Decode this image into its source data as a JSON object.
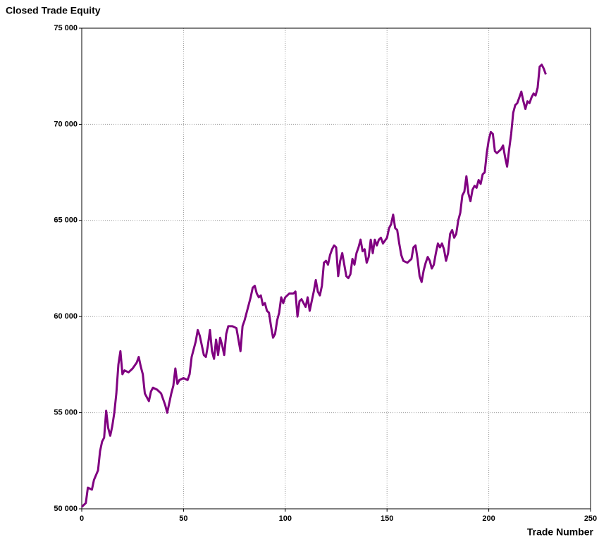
{
  "chart_data": {
    "type": "line",
    "title": "Closed Trade Equity",
    "xlabel": "Trade Number",
    "x": [
      0,
      2,
      3,
      5,
      6,
      8,
      9,
      10,
      11,
      12,
      13,
      14,
      15,
      16,
      17,
      18,
      19,
      20,
      21,
      23,
      25,
      27,
      28,
      29,
      30,
      31,
      32,
      33,
      34,
      35,
      37,
      39,
      41,
      42,
      43,
      44,
      45,
      46,
      47,
      48,
      50,
      52,
      53,
      54,
      56,
      57,
      58,
      60,
      61,
      62,
      63,
      64,
      65,
      66,
      67,
      68,
      69,
      70,
      71,
      72,
      74,
      76,
      77,
      78,
      79,
      80,
      81,
      82,
      83,
      84,
      85,
      86,
      87,
      88,
      89,
      90,
      91,
      92,
      93,
      94,
      95,
      96,
      97,
      98,
      99,
      100,
      102,
      104,
      105,
      106,
      107,
      108,
      110,
      111,
      112,
      113,
      114,
      115,
      116,
      117,
      118,
      119,
      120,
      121,
      122,
      123,
      124,
      125,
      126,
      127,
      128,
      129,
      130,
      131,
      132,
      133,
      134,
      135,
      136,
      137,
      138,
      139,
      140,
      141,
      142,
      143,
      144,
      145,
      146,
      147,
      148,
      150,
      151,
      152,
      153,
      154,
      155,
      156,
      157,
      158,
      160,
      162,
      163,
      164,
      165,
      166,
      167,
      168,
      169,
      170,
      171,
      172,
      173,
      174,
      175,
      176,
      177,
      178,
      179,
      180,
      181,
      182,
      183,
      184,
      185,
      186,
      187,
      188,
      189,
      190,
      191,
      192,
      193,
      194,
      195,
      196,
      197,
      198,
      199,
      200,
      201,
      202,
      203,
      204,
      205,
      206,
      207,
      208,
      209,
      210,
      211,
      212,
      213,
      214,
      215,
      216,
      217,
      218,
      219,
      220,
      221,
      222,
      223,
      224,
      225,
      226,
      227,
      228
    ],
    "series": [
      {
        "name": "Closed Trade Equity",
        "color": "#800080",
        "values": [
          50100,
          50300,
          51100,
          51000,
          51500,
          52000,
          53000,
          53500,
          53700,
          55100,
          54200,
          53800,
          54300,
          55000,
          56000,
          57500,
          58200,
          57000,
          57200,
          57100,
          57300,
          57600,
          57900,
          57400,
          57000,
          56000,
          55800,
          55600,
          56100,
          56300,
          56200,
          56000,
          55400,
          55000,
          55500,
          56000,
          56400,
          57300,
          56500,
          56700,
          56800,
          56700,
          57000,
          57900,
          58700,
          59300,
          59000,
          58000,
          57900,
          58500,
          59300,
          58200,
          57800,
          58800,
          58000,
          58900,
          58500,
          58000,
          59100,
          59500,
          59500,
          59400,
          58800,
          58200,
          59500,
          59800,
          60200,
          60600,
          61000,
          61500,
          61600,
          61200,
          61000,
          61100,
          60600,
          60700,
          60300,
          60200,
          59500,
          58900,
          59100,
          59800,
          60200,
          61000,
          60700,
          61000,
          61200,
          61200,
          61300,
          60000,
          60800,
          60900,
          60500,
          61000,
          60300,
          60800,
          61300,
          61900,
          61300,
          61100,
          61600,
          62800,
          62900,
          62700,
          63200,
          63500,
          63700,
          63600,
          62100,
          62900,
          63300,
          62700,
          62100,
          62000,
          62200,
          63000,
          62700,
          63300,
          63600,
          64000,
          63400,
          63500,
          62800,
          63100,
          64000,
          63300,
          64000,
          63700,
          64000,
          64100,
          63800,
          64100,
          64600,
          64800,
          65300,
          64600,
          64500,
          63800,
          63200,
          62900,
          62800,
          63000,
          63600,
          63700,
          63000,
          62100,
          61800,
          62400,
          62800,
          63100,
          62900,
          62500,
          62700,
          63300,
          63800,
          63600,
          63800,
          63500,
          62900,
          63300,
          64300,
          64500,
          64100,
          64300,
          65000,
          65400,
          66300,
          66500,
          67300,
          66400,
          66000,
          66600,
          66800,
          66700,
          67100,
          66900,
          67400,
          67500,
          68500,
          69200,
          69600,
          69500,
          68600,
          68500,
          68600,
          68700,
          68900,
          68300,
          67800,
          68700,
          69500,
          70600,
          71000,
          71100,
          71400,
          71700,
          71200,
          70800,
          71200,
          71100,
          71400,
          71600,
          71500,
          71900,
          73000,
          73100,
          72900,
          72600
        ]
      }
    ],
    "xlim": [
      0,
      250
    ],
    "xticks": [
      0,
      50,
      100,
      150,
      200,
      250
    ],
    "ylim": [
      50000,
      75000
    ],
    "yticks": [
      {
        "value": 50000,
        "label": "50 000"
      },
      {
        "value": 55000,
        "label": "55 000"
      },
      {
        "value": 60000,
        "label": "60 000"
      },
      {
        "value": 65000,
        "label": "65 000"
      },
      {
        "value": 70000,
        "label": "70 000"
      },
      {
        "value": 75000,
        "label": "75 000"
      }
    ],
    "grid": true
  }
}
